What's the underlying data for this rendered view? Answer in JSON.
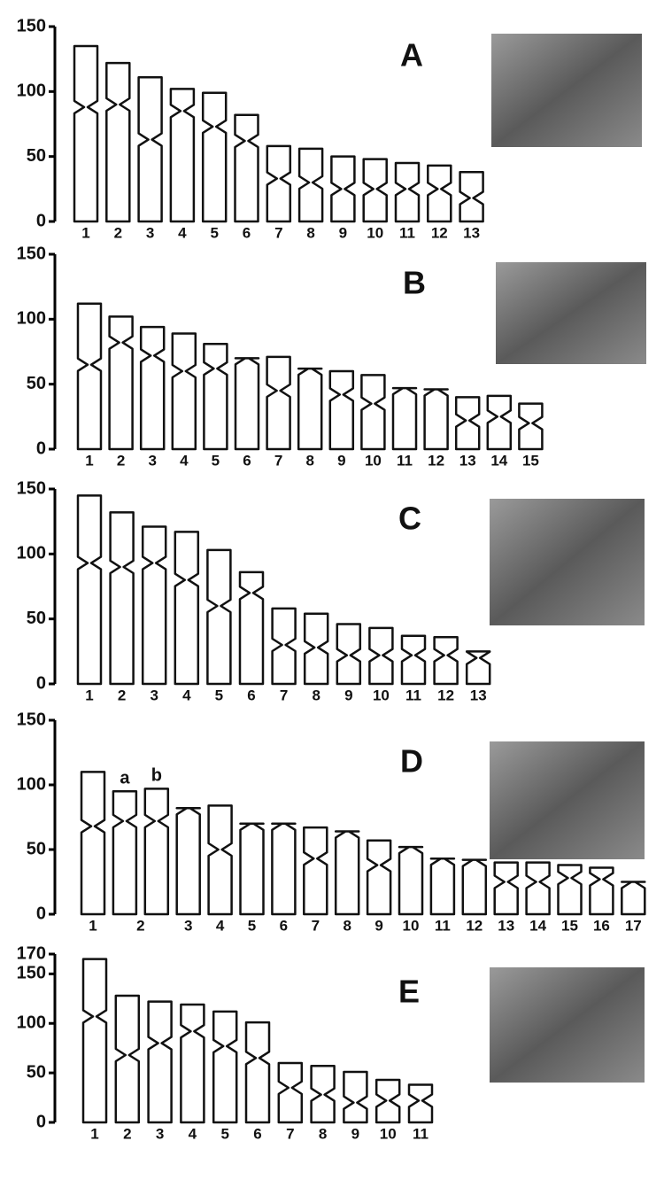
{
  "chart_data": [
    {
      "type": "ideogram",
      "panel": "A",
      "ylim": [
        0,
        150
      ],
      "yticks": [
        0,
        50,
        100,
        150
      ],
      "categories": [
        "1",
        "2",
        "3",
        "4",
        "5",
        "6",
        "7",
        "8",
        "9",
        "10",
        "11",
        "12",
        "13"
      ],
      "values": [
        135,
        122,
        111,
        102,
        99,
        82,
        58,
        56,
        50,
        48,
        45,
        43,
        38
      ],
      "centromeres": [
        88,
        90,
        63,
        85,
        73,
        62,
        33,
        30,
        25,
        25,
        25,
        25,
        18
      ]
    },
    {
      "type": "ideogram",
      "panel": "B",
      "ylim": [
        0,
        150
      ],
      "yticks": [
        0,
        50,
        100,
        150
      ],
      "categories": [
        "1",
        "2",
        "3",
        "4",
        "5",
        "6",
        "7",
        "8",
        "9",
        "10",
        "11",
        "12",
        "13",
        "14",
        "15"
      ],
      "values": [
        112,
        102,
        94,
        89,
        81,
        70,
        71,
        62,
        60,
        57,
        47,
        46,
        40,
        41,
        35
      ],
      "centromeres": [
        65,
        82,
        72,
        60,
        62,
        70,
        45,
        62,
        42,
        35,
        47,
        46,
        22,
        25,
        20
      ]
    },
    {
      "type": "ideogram",
      "panel": "C",
      "ylim": [
        0,
        150
      ],
      "yticks": [
        0,
        50,
        100,
        150
      ],
      "categories": [
        "1",
        "2",
        "3",
        "4",
        "5",
        "6",
        "7",
        "8",
        "9",
        "10",
        "11",
        "12",
        "13"
      ],
      "values": [
        145,
        132,
        121,
        117,
        103,
        86,
        58,
        54,
        46,
        43,
        37,
        36,
        25
      ],
      "centromeres": [
        93,
        90,
        93,
        80,
        60,
        70,
        30,
        28,
        22,
        22,
        22,
        22,
        20
      ]
    },
    {
      "type": "ideogram",
      "panel": "D",
      "ylim": [
        0,
        150
      ],
      "yticks": [
        0,
        50,
        100,
        150
      ],
      "categories": [
        "1",
        "2",
        null,
        "3",
        "4",
        "5",
        "6",
        "7",
        "8",
        "9",
        "10",
        "11",
        "12",
        "13",
        "14",
        "15",
        "16",
        "17"
      ],
      "sublabels": [
        null,
        "a",
        "b",
        null,
        null,
        null,
        null,
        null,
        null,
        null,
        null,
        null,
        null,
        null,
        null,
        null,
        null,
        null
      ],
      "values": [
        110,
        95,
        97,
        82,
        84,
        70,
        70,
        67,
        64,
        57,
        52,
        43,
        42,
        40,
        40,
        38,
        36,
        25
      ],
      "centromeres": [
        68,
        72,
        72,
        82,
        50,
        70,
        70,
        43,
        64,
        38,
        52,
        43,
        42,
        25,
        25,
        28,
        27,
        25
      ]
    },
    {
      "type": "ideogram",
      "panel": "E",
      "ylim": [
        0,
        170
      ],
      "yticks": [
        0,
        50,
        100,
        150,
        170
      ],
      "categories": [
        "1",
        "2",
        "3",
        "4",
        "5",
        "6",
        "7",
        "8",
        "9",
        "10",
        "11"
      ],
      "values": [
        165,
        128,
        122,
        119,
        112,
        101,
        60,
        57,
        51,
        43,
        38
      ],
      "centromeres": [
        107,
        68,
        80,
        92,
        77,
        65,
        35,
        28,
        20,
        22,
        22
      ]
    }
  ]
}
